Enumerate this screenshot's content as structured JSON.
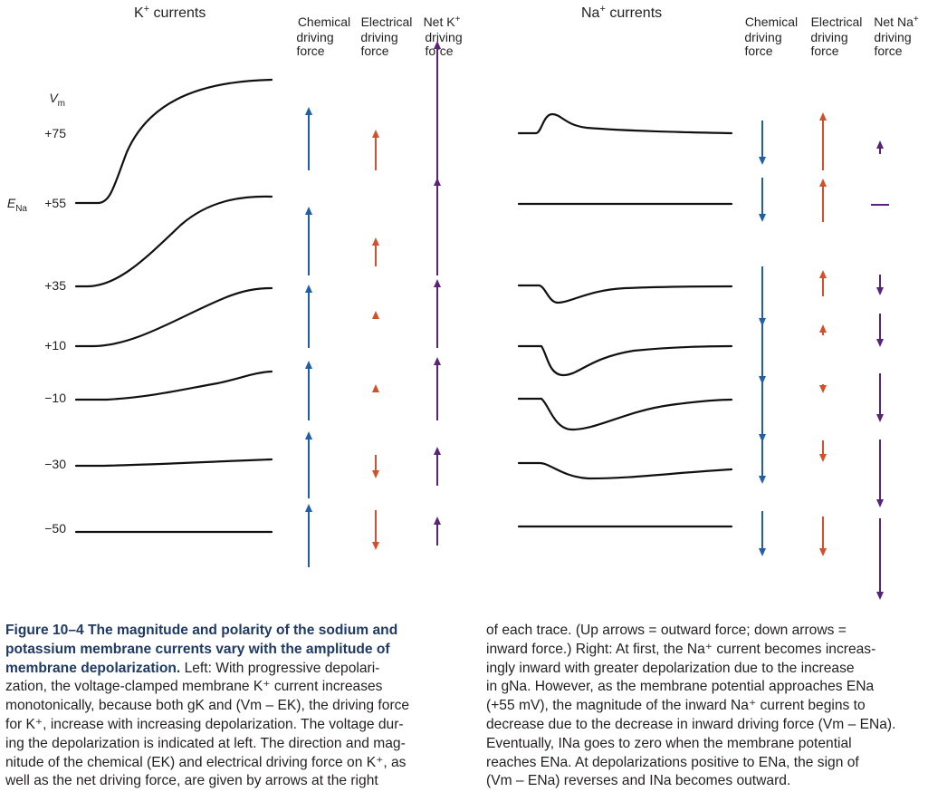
{
  "figure": {
    "k_panel": {
      "title_main": "K",
      "title_sup": "+",
      "title_rest": " currents",
      "col_chemical": [
        "Chemical",
        "driving",
        "force"
      ],
      "col_electrical": [
        "Electrical",
        "driving",
        "force"
      ],
      "col_net": [
        "Net K",
        "driving",
        "force"
      ],
      "col_net_sup": "+"
    },
    "na_panel": {
      "title_main": "Na",
      "title_sup": "+",
      "title_rest": " currents",
      "col_chemical": [
        "Chemical",
        "driving",
        "force"
      ],
      "col_electrical": [
        "Electrical",
        "driving",
        "force"
      ],
      "col_net": [
        "Net Na",
        "driving",
        "force"
      ],
      "col_net_sup": "+"
    },
    "vm_label": "V",
    "vm_sub": "m",
    "ena_label": "E",
    "ena_sub": "Na",
    "rows": [
      {
        "label": "+75",
        "k_arrows": {
          "chem": "up",
          "elec": "up",
          "net": "up"
        },
        "na_arrows": {
          "chem": "down",
          "elec": "up",
          "net": "up"
        }
      },
      {
        "label": "+55",
        "k_arrows": {
          "chem": "up",
          "elec": "up",
          "net": "up"
        },
        "na_arrows": {
          "chem": "down",
          "elec": "up",
          "net": "none"
        }
      },
      {
        "label": "+35",
        "k_arrows": {
          "chem": "up",
          "elec": "up",
          "net": "up"
        },
        "na_arrows": {
          "chem": "down",
          "elec": "up",
          "net": "down"
        }
      },
      {
        "label": "+10",
        "k_arrows": {
          "chem": "up",
          "elec": "up",
          "net": "up"
        },
        "na_arrows": {
          "chem": "down",
          "elec": "up",
          "net": "down"
        }
      },
      {
        "label": "−10",
        "k_arrows": {
          "chem": "up",
          "elec": "down",
          "net": "up"
        },
        "na_arrows": {
          "chem": "down",
          "elec": "down",
          "net": "down"
        }
      },
      {
        "label": "−30",
        "k_arrows": {
          "chem": "up",
          "elec": "down",
          "net": "up"
        },
        "na_arrows": {
          "chem": "down",
          "elec": "down",
          "net": "down"
        }
      },
      {
        "label": "−50",
        "k_arrows": {
          "chem": "up",
          "elec": "down",
          "net": "up"
        },
        "na_arrows": {
          "chem": "down",
          "elec": "down",
          "net": "down"
        }
      }
    ],
    "colors": {
      "chemical": "#1f5fa8",
      "electrical": "#d4502a",
      "net": "#5b2277",
      "trace": "#111111",
      "caption_title": "#1f3a66"
    }
  },
  "caption": {
    "left_lines": [
      {
        "bold": "Figure 10–4 The magnitude and polarity of the sodium and"
      },
      {
        "bold": "potassium membrane currents vary with the amplitude of"
      },
      {
        "bold": "membrane depolarization.",
        "text": " Left: With progressive depolari-"
      },
      {
        "text": "zation, the voltage-clamped membrane K⁺ current increases"
      },
      {
        "text": "monotonically, because both gK and (Vm – EK), the driving force"
      },
      {
        "text": "for K⁺, increase with increasing depolarization. The voltage dur-"
      },
      {
        "text": "ing the depolarization is indicated at left. The direction and mag-"
      },
      {
        "text": "nitude of the chemical (EK) and electrical driving force on K⁺, as"
      },
      {
        "text": "well as the net driving force, are given by arrows at the right"
      }
    ],
    "right_lines": [
      {
        "text": "of each trace. (Up arrows = outward force; down arrows ="
      },
      {
        "text": "inward force.) Right: At first, the Na⁺ current becomes increas-"
      },
      {
        "text": "ingly inward with greater depolarization due to the increase"
      },
      {
        "text": "in gNa. However, as the membrane potential approaches ENa"
      },
      {
        "text": "(+55 mV), the magnitude of the inward Na⁺ current begins to"
      },
      {
        "text": "decrease due to the decrease in inward driving force (Vm – ENa)."
      },
      {
        "text": "Eventually, INa goes to zero when the membrane potential"
      },
      {
        "text": "reaches ENa. At depolarizations positive to ENa, the sign of"
      },
      {
        "text": "(Vm – ENa) reverses and INa becomes outward."
      }
    ]
  }
}
